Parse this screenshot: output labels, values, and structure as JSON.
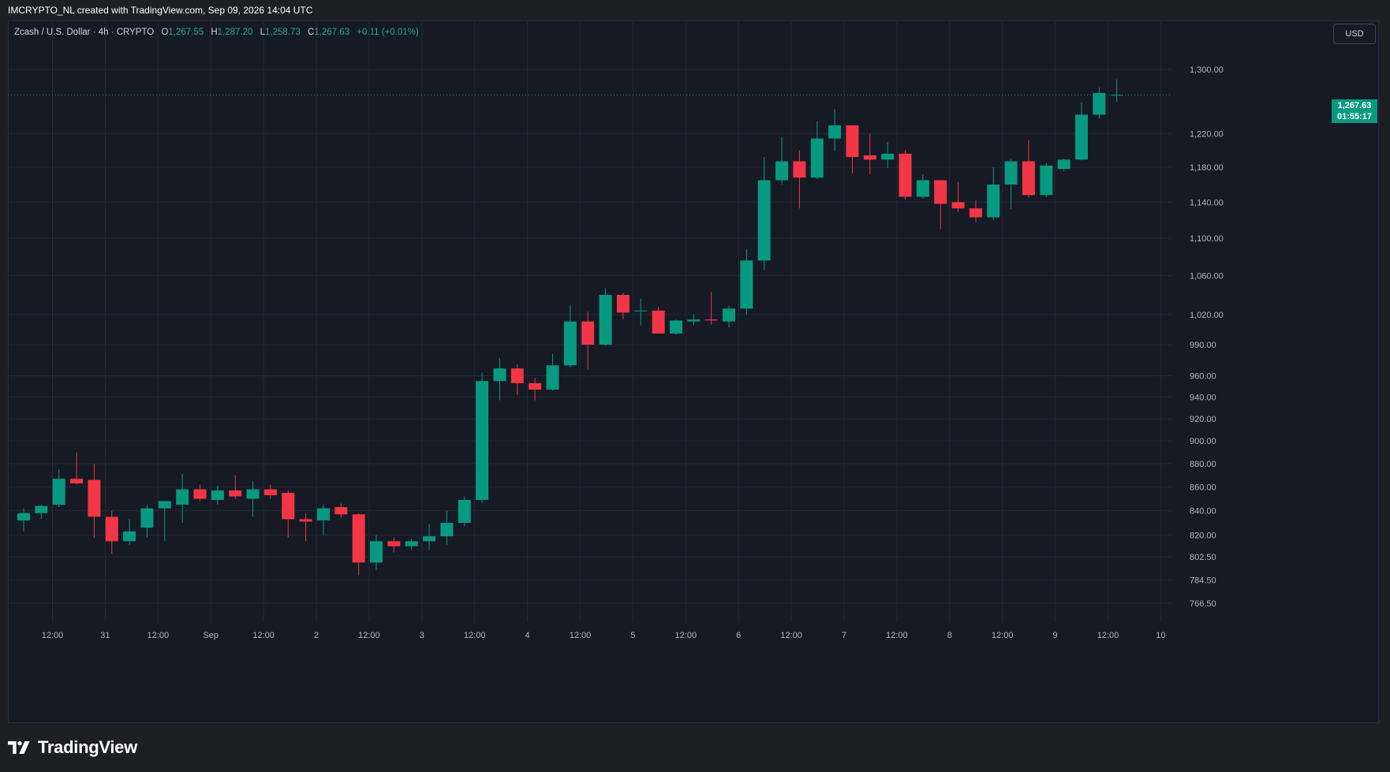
{
  "caption": "IMCRYPTO_NL created with TradingView.com, Sep 09, 2026 14:04 UTC",
  "legend": {
    "symbol": "Zcash / U.S. Dollar · 4h · CRYPTO",
    "o_label": "O",
    "o_value": "1,267.55",
    "h_label": "H",
    "h_value": "1,287.20",
    "l_label": "L",
    "l_value": "1,258.73",
    "c_label": "C",
    "c_value": "1,267.63",
    "change": "+0.11 (+0.01%)"
  },
  "currency_button": "USD",
  "price_tag": {
    "price": "1,267.63",
    "countdown": "01:55:17"
  },
  "brand": "TradingView",
  "colors": {
    "up": "#089981",
    "down": "#f23645",
    "background": "#161a25",
    "grid": "#242838",
    "axis_text": "#b2b5be"
  },
  "chart_data": {
    "type": "candlestick",
    "symbol": "Zcash / U.S. Dollar",
    "interval": "4h",
    "scale": "log",
    "grid": true,
    "y_ticks": [
      "1,300.00",
      "1,220.00",
      "1,180.00",
      "1,140.00",
      "1,100.00",
      "1,060.00",
      "1,020.00",
      "990.00",
      "960.00",
      "940.00",
      "920.00",
      "900.00",
      "880.00",
      "860.00",
      "840.00",
      "820.00",
      "802.50",
      "784.50",
      "766.50"
    ],
    "x_ticks": [
      "12:00",
      "31",
      "12:00",
      "Sep",
      "12:00",
      "2",
      "12:00",
      "3",
      "12:00",
      "4",
      "12:00",
      "5",
      "12:00",
      "6",
      "12:00",
      "7",
      "12:00",
      "8",
      "12:00",
      "9",
      "12:00",
      "10"
    ],
    "last_price": 1267.63,
    "candles": [
      {
        "o": 832,
        "h": 842,
        "l": 823,
        "c": 838
      },
      {
        "o": 838,
        "h": 845,
        "l": 833,
        "c": 844
      },
      {
        "o": 845,
        "h": 875,
        "l": 843,
        "c": 867
      },
      {
        "o": 867,
        "h": 890,
        "l": 862,
        "c": 863
      },
      {
        "o": 866,
        "h": 880,
        "l": 818,
        "c": 835
      },
      {
        "o": 835,
        "h": 840,
        "l": 805,
        "c": 815
      },
      {
        "o": 815,
        "h": 833,
        "l": 812,
        "c": 823
      },
      {
        "o": 826,
        "h": 845,
        "l": 818,
        "c": 842
      },
      {
        "o": 842,
        "h": 848,
        "l": 815,
        "c": 848
      },
      {
        "o": 845,
        "h": 871,
        "l": 830,
        "c": 858
      },
      {
        "o": 858,
        "h": 862,
        "l": 848,
        "c": 850
      },
      {
        "o": 849,
        "h": 861,
        "l": 845,
        "c": 857
      },
      {
        "o": 857,
        "h": 870,
        "l": 850,
        "c": 852
      },
      {
        "o": 850,
        "h": 865,
        "l": 835,
        "c": 858
      },
      {
        "o": 858,
        "h": 862,
        "l": 850,
        "c": 853
      },
      {
        "o": 855,
        "h": 857,
        "l": 818,
        "c": 833
      },
      {
        "o": 833,
        "h": 838,
        "l": 815,
        "c": 831
      },
      {
        "o": 832,
        "h": 845,
        "l": 820,
        "c": 842
      },
      {
        "o": 843,
        "h": 846,
        "l": 834,
        "c": 837
      },
      {
        "o": 837,
        "h": 838,
        "l": 788,
        "c": 798
      },
      {
        "o": 798,
        "h": 820,
        "l": 792,
        "c": 815
      },
      {
        "o": 815,
        "h": 818,
        "l": 806,
        "c": 811
      },
      {
        "o": 811,
        "h": 817,
        "l": 808,
        "c": 815
      },
      {
        "o": 815,
        "h": 829,
        "l": 808,
        "c": 819
      },
      {
        "o": 819,
        "h": 840,
        "l": 812,
        "c": 830
      },
      {
        "o": 830,
        "h": 852,
        "l": 827,
        "c": 849
      },
      {
        "o": 849,
        "h": 963,
        "l": 846,
        "c": 955
      },
      {
        "o": 955,
        "h": 977,
        "l": 937,
        "c": 967
      },
      {
        "o": 967,
        "h": 971,
        "l": 942,
        "c": 953
      },
      {
        "o": 953,
        "h": 958,
        "l": 937,
        "c": 947
      },
      {
        "o": 947,
        "h": 981,
        "l": 946,
        "c": 970
      },
      {
        "o": 970,
        "h": 1030,
        "l": 968,
        "c": 1013
      },
      {
        "o": 1013,
        "h": 1023,
        "l": 966,
        "c": 990
      },
      {
        "o": 990,
        "h": 1047,
        "l": 989,
        "c": 1040
      },
      {
        "o": 1040,
        "h": 1042,
        "l": 1015,
        "c": 1022
      },
      {
        "o": 1024,
        "h": 1036,
        "l": 1009,
        "c": 1024
      },
      {
        "o": 1024,
        "h": 1028,
        "l": 1001,
        "c": 1001
      },
      {
        "o": 1001,
        "h": 1015,
        "l": 1000,
        "c": 1014
      },
      {
        "o": 1013,
        "h": 1020,
        "l": 1009,
        "c": 1015
      },
      {
        "o": 1015,
        "h": 1043,
        "l": 1010,
        "c": 1014
      },
      {
        "o": 1013,
        "h": 1029,
        "l": 1007,
        "c": 1026
      },
      {
        "o": 1026,
        "h": 1088,
        "l": 1020,
        "c": 1076
      },
      {
        "o": 1076,
        "h": 1192,
        "l": 1066,
        "c": 1165
      },
      {
        "o": 1165,
        "h": 1216,
        "l": 1160,
        "c": 1187
      },
      {
        "o": 1187,
        "h": 1200,
        "l": 1133,
        "c": 1168
      },
      {
        "o": 1168,
        "h": 1235,
        "l": 1166,
        "c": 1214
      },
      {
        "o": 1214,
        "h": 1250,
        "l": 1199,
        "c": 1230
      },
      {
        "o": 1230,
        "h": 1230,
        "l": 1173,
        "c": 1192
      },
      {
        "o": 1194,
        "h": 1220,
        "l": 1172,
        "c": 1189
      },
      {
        "o": 1189,
        "h": 1210,
        "l": 1179,
        "c": 1196
      },
      {
        "o": 1196,
        "h": 1200,
        "l": 1143,
        "c": 1146
      },
      {
        "o": 1146,
        "h": 1172,
        "l": 1144,
        "c": 1165
      },
      {
        "o": 1165,
        "h": 1165,
        "l": 1110,
        "c": 1138
      },
      {
        "o": 1140,
        "h": 1163,
        "l": 1129,
        "c": 1133
      },
      {
        "o": 1133,
        "h": 1142,
        "l": 1118,
        "c": 1123
      },
      {
        "o": 1123,
        "h": 1180,
        "l": 1120,
        "c": 1160
      },
      {
        "o": 1160,
        "h": 1190,
        "l": 1132,
        "c": 1187
      },
      {
        "o": 1187,
        "h": 1212,
        "l": 1145,
        "c": 1148
      },
      {
        "o": 1148,
        "h": 1185,
        "l": 1146,
        "c": 1182
      },
      {
        "o": 1178,
        "h": 1190,
        "l": 1175,
        "c": 1189
      },
      {
        "o": 1189,
        "h": 1258,
        "l": 1188,
        "c": 1243
      },
      {
        "o": 1243,
        "h": 1277,
        "l": 1238,
        "c": 1270
      },
      {
        "o": 1267.55,
        "h": 1287.2,
        "l": 1258.73,
        "c": 1267.63
      }
    ]
  }
}
